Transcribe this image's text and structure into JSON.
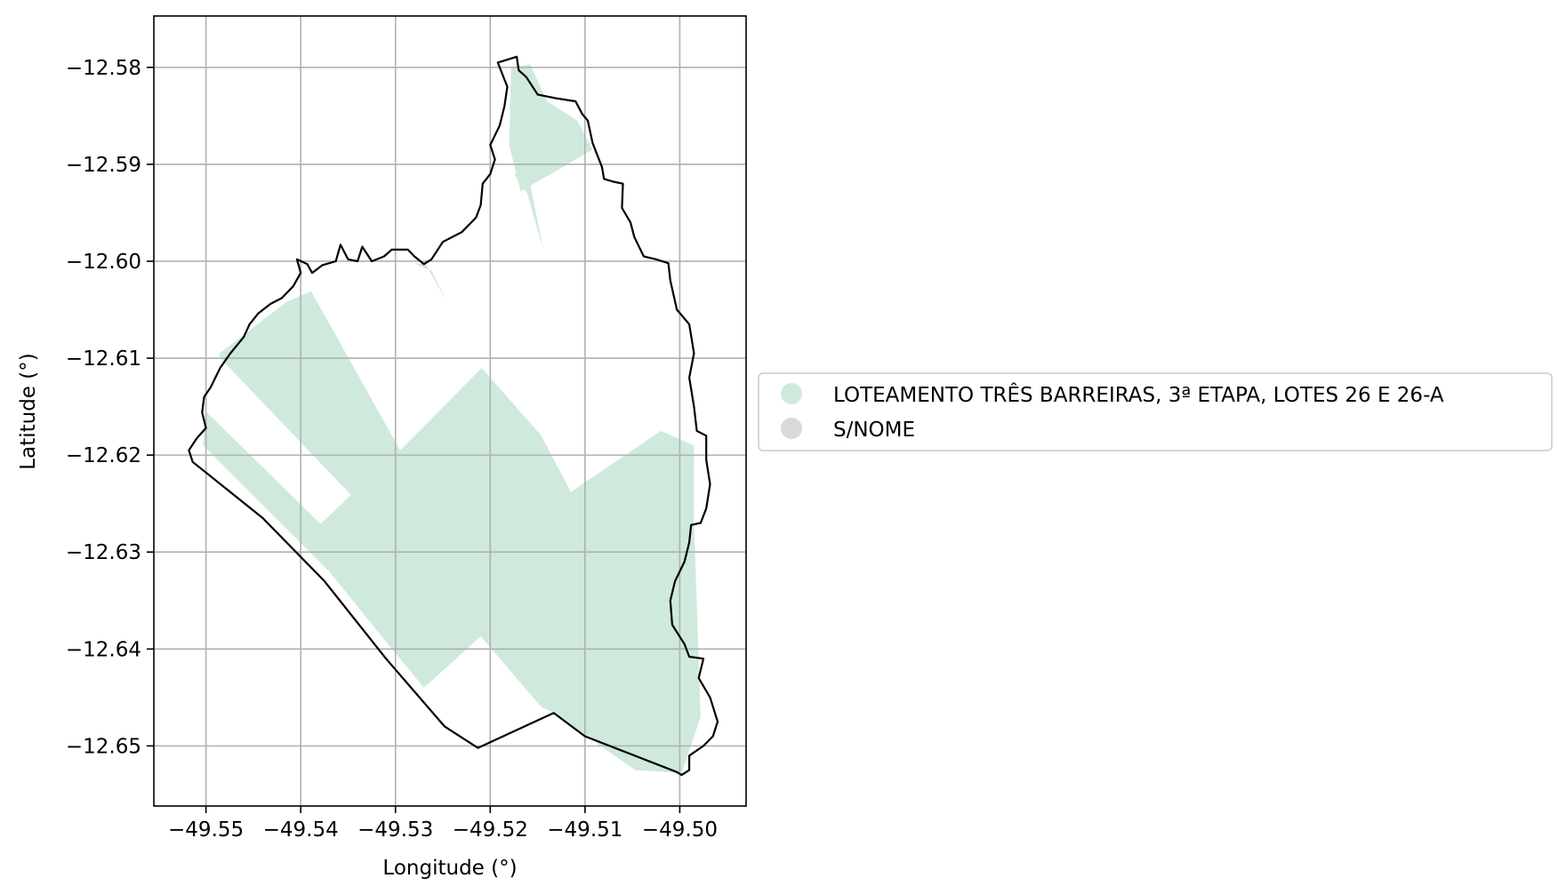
{
  "map": {
    "xlabel": "Longitude (°)",
    "ylabel": "Latitude (°)",
    "grid": true,
    "xlim": [
      -49.5555,
      -49.493
    ],
    "ylim": [
      -12.6562,
      -12.5747
    ],
    "x_ticks": [
      {
        "value": -49.55,
        "label": "−49.55"
      },
      {
        "value": -49.54,
        "label": "−49.54"
      },
      {
        "value": -49.53,
        "label": "−49.53"
      },
      {
        "value": -49.52,
        "label": "−49.52"
      },
      {
        "value": -49.51,
        "label": "−49.51"
      },
      {
        "value": -49.5,
        "label": "−49.50"
      }
    ],
    "y_ticks": [
      {
        "value": -12.58,
        "label": "−12.58"
      },
      {
        "value": -12.59,
        "label": "−12.59"
      },
      {
        "value": -12.6,
        "label": "−12.60"
      },
      {
        "value": -12.61,
        "label": "−12.61"
      },
      {
        "value": -12.62,
        "label": "−12.62"
      },
      {
        "value": -12.63,
        "label": "−12.63"
      },
      {
        "value": -12.64,
        "label": "−12.64"
      },
      {
        "value": -12.65,
        "label": "−12.65"
      }
    ],
    "legend": {
      "placement": "center-right, outside axes",
      "items": [
        {
          "label": "LOTEAMENTO TRÊS BARREIRAS, 3ª ETAPA, LOTES 26 E 26-A",
          "color": "#cfeadc"
        },
        {
          "label": "S/NOME",
          "color": "#d9d9d9"
        }
      ]
    },
    "colors": {
      "boundary": "#000000",
      "grid": "#b0b0b0",
      "region_main": "#cfeadc",
      "region_snome": "#d9d9d9"
    },
    "regions": [
      {
        "category": 0,
        "polygons": [
          [
            [
              -49.5487,
              -12.6096
            ],
            [
              -49.5415,
              -12.6042
            ],
            [
              -49.5389,
              -12.6031
            ],
            [
              -49.5295,
              -12.6195
            ],
            [
              -49.5209,
              -12.611
            ],
            [
              -49.5146,
              -12.618
            ],
            [
              -49.5115,
              -12.6238
            ],
            [
              -49.502,
              -12.6175
            ],
            [
              -49.4985,
              -12.619
            ],
            [
              -49.4985,
              -12.627
            ],
            [
              -49.4978,
              -12.647
            ],
            [
              -49.4998,
              -12.6528
            ],
            [
              -49.5047,
              -12.6525
            ],
            [
              -49.5133,
              -12.6466
            ],
            [
              -49.5146,
              -12.646
            ],
            [
              -49.521,
              -12.6387
            ],
            [
              -49.527,
              -12.644
            ],
            [
              -49.5312,
              -12.639
            ],
            [
              -49.537,
              -12.632
            ],
            [
              -49.5503,
              -12.619
            ],
            [
              -49.55,
              -12.6155
            ],
            [
              -49.5379,
              -12.6271
            ],
            [
              -49.5347,
              -12.6241
            ],
            [
              -49.548,
              -12.6105
            ]
          ],
          [
            [
              -49.5178,
              -12.58
            ],
            [
              -49.5158,
              -12.5797
            ],
            [
              -49.514,
              -12.5835
            ],
            [
              -49.5108,
              -12.5855
            ],
            [
              -49.5092,
              -12.5885
            ],
            [
              -49.5168,
              -12.5928
            ],
            [
              -49.518,
              -12.588
            ]
          ],
          [
            [
              -49.5175,
              -12.591
            ],
            [
              -49.516,
              -12.591
            ],
            [
              -49.5144,
              -12.5988
            ],
            [
              -49.5161,
              -12.593
            ]
          ]
        ]
      },
      {
        "category": 1,
        "polygons": [
          [
            [
              -49.528,
              -12.6002
            ],
            [
              -49.5268,
              -12.6003
            ],
            [
              -49.5245,
              -12.6043
            ],
            [
              -49.5262,
              -12.601
            ]
          ]
        ]
      }
    ],
    "boundary": [
      [
        -49.5192,
        -12.5795
      ],
      [
        -49.5172,
        -12.5789
      ],
      [
        -49.517,
        -12.5803
      ],
      [
        -49.5162,
        -12.581
      ],
      [
        -49.515,
        -12.5828
      ],
      [
        -49.513,
        -12.5832
      ],
      [
        -49.511,
        -12.5835
      ],
      [
        -49.5103,
        -12.5848
      ],
      [
        -49.5097,
        -12.5855
      ],
      [
        -49.5092,
        -12.5878
      ],
      [
        -49.5088,
        -12.5888
      ],
      [
        -49.5082,
        -12.5903
      ],
      [
        -49.508,
        -12.5915
      ],
      [
        -49.507,
        -12.5918
      ],
      [
        -49.506,
        -12.592
      ],
      [
        -49.5061,
        -12.5945
      ],
      [
        -49.5052,
        -12.596
      ],
      [
        -49.5048,
        -12.5975
      ],
      [
        -49.5038,
        -12.5995
      ],
      [
        -49.5025,
        -12.5998
      ],
      [
        -49.5012,
        -12.6002
      ],
      [
        -49.501,
        -12.602
      ],
      [
        -49.5003,
        -12.605
      ],
      [
        -49.499,
        -12.6065
      ],
      [
        -49.4985,
        -12.6095
      ],
      [
        -49.499,
        -12.612
      ],
      [
        -49.4985,
        -12.615
      ],
      [
        -49.4982,
        -12.6175
      ],
      [
        -49.4972,
        -12.618
      ],
      [
        -49.4972,
        -12.6205
      ],
      [
        -49.4968,
        -12.623
      ],
      [
        -49.4972,
        -12.6255
      ],
      [
        -49.4978,
        -12.627
      ],
      [
        -49.4988,
        -12.6272
      ],
      [
        -49.499,
        -12.629
      ],
      [
        -49.4995,
        -12.631
      ],
      [
        -49.5005,
        -12.633
      ],
      [
        -49.501,
        -12.635
      ],
      [
        -49.5008,
        -12.6375
      ],
      [
        -49.4995,
        -12.6395
      ],
      [
        -49.499,
        -12.6408
      ],
      [
        -49.4975,
        -12.641
      ],
      [
        -49.498,
        -12.643
      ],
      [
        -49.4968,
        -12.645
      ],
      [
        -49.496,
        -12.6475
      ],
      [
        -49.4965,
        -12.649
      ],
      [
        -49.4975,
        -12.65
      ],
      [
        -49.499,
        -12.651
      ],
      [
        -49.499,
        -12.6525
      ],
      [
        -49.4998,
        -12.653
      ],
      [
        -49.5003,
        -12.6527
      ],
      [
        -49.51,
        -12.649
      ],
      [
        -49.5133,
        -12.6466
      ],
      [
        -49.5213,
        -12.6502
      ],
      [
        -49.5248,
        -12.648
      ],
      [
        -49.531,
        -12.641
      ],
      [
        -49.5375,
        -12.633
      ],
      [
        -49.544,
        -12.6265
      ],
      [
        -49.5514,
        -12.6207
      ],
      [
        -49.5518,
        -12.6195
      ],
      [
        -49.551,
        -12.6183
      ],
      [
        -49.55,
        -12.6172
      ],
      [
        -49.5504,
        -12.6156
      ],
      [
        -49.5502,
        -12.614
      ],
      [
        -49.5495,
        -12.613
      ],
      [
        -49.5485,
        -12.611
      ],
      [
        -49.5475,
        -12.6096
      ],
      [
        -49.546,
        -12.6078
      ],
      [
        -49.5454,
        -12.6065
      ],
      [
        -49.5445,
        -12.6054
      ],
      [
        -49.5432,
        -12.6044
      ],
      [
        -49.542,
        -12.6038
      ],
      [
        -49.5408,
        -12.6026
      ],
      [
        -49.54,
        -12.6012
      ],
      [
        -49.5404,
        -12.5998
      ],
      [
        -49.5393,
        -12.6003
      ],
      [
        -49.5388,
        -12.6012
      ],
      [
        -49.5377,
        -12.6004
      ],
      [
        -49.5363,
        -12.6
      ],
      [
        -49.5358,
        -12.5983
      ],
      [
        -49.535,
        -12.5998
      ],
      [
        -49.534,
        -12.6
      ],
      [
        -49.5335,
        -12.5985
      ],
      [
        -49.5325,
        -12.6
      ],
      [
        -49.5312,
        -12.5995
      ],
      [
        -49.5304,
        -12.5988
      ],
      [
        -49.5287,
        -12.5988
      ],
      [
        -49.528,
        -12.5995
      ],
      [
        -49.527,
        -12.6003
      ],
      [
        -49.5262,
        -12.5998
      ],
      [
        -49.525,
        -12.598
      ],
      [
        -49.523,
        -12.597
      ],
      [
        -49.5215,
        -12.5955
      ],
      [
        -49.521,
        -12.5942
      ],
      [
        -49.5208,
        -12.592
      ],
      [
        -49.52,
        -12.591
      ],
      [
        -49.5195,
        -12.5895
      ],
      [
        -49.52,
        -12.588
      ],
      [
        -49.519,
        -12.586
      ],
      [
        -49.5185,
        -12.584
      ],
      [
        -49.5182,
        -12.582
      ]
    ]
  }
}
